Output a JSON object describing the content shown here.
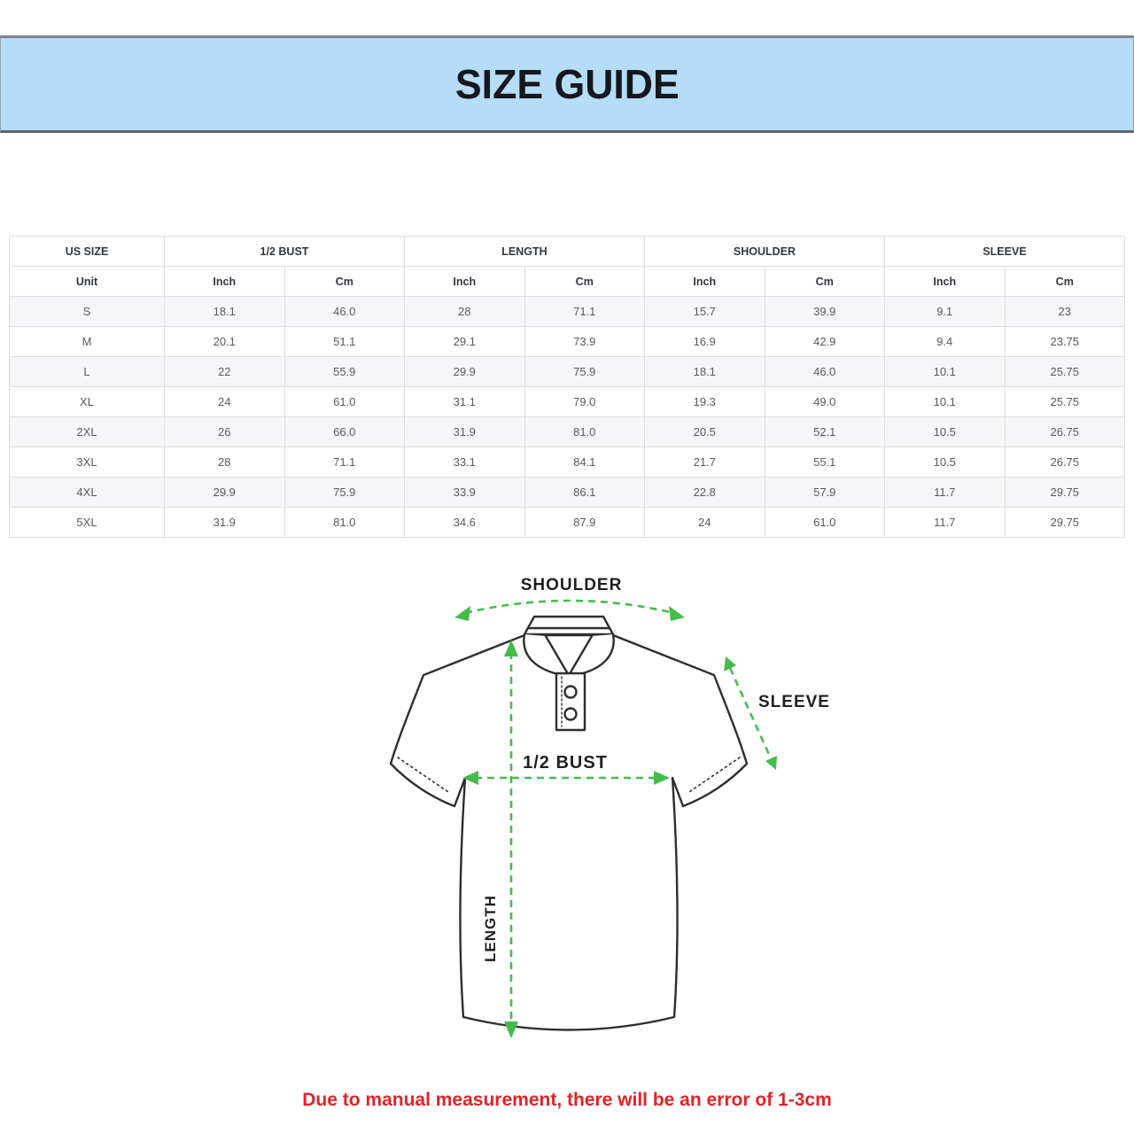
{
  "banner": {
    "title": "SIZE GUIDE"
  },
  "colors": {
    "banner_bg": "#b5ddf8",
    "accent_green": "#46bb4c",
    "footnote_red": "#e32227",
    "row_alt": "#f6f6f8",
    "table_border": "#dddde1"
  },
  "table": {
    "groups": [
      {
        "label": "US SIZE",
        "span": 1
      },
      {
        "label": "1/2 BUST",
        "span": 2
      },
      {
        "label": "LENGTH",
        "span": 2
      },
      {
        "label": "SHOULDER",
        "span": 2
      },
      {
        "label": "SLEEVE",
        "span": 2
      }
    ],
    "unit_row": [
      "Unit",
      "Inch",
      "Cm",
      "Inch",
      "Cm",
      "Inch",
      "Cm",
      "Inch",
      "Cm"
    ],
    "rows": [
      [
        "S",
        "18.1",
        "46.0",
        "28",
        "71.1",
        "15.7",
        "39.9",
        "9.1",
        "23"
      ],
      [
        "M",
        "20.1",
        "51.1",
        "29.1",
        "73.9",
        "16.9",
        "42.9",
        "9.4",
        "23.75"
      ],
      [
        "L",
        "22",
        "55.9",
        "29.9",
        "75.9",
        "18.1",
        "46.0",
        "10.1",
        "25.75"
      ],
      [
        "XL",
        "24",
        "61.0",
        "31.1",
        "79.0",
        "19.3",
        "49.0",
        "10.1",
        "25.75"
      ],
      [
        "2XL",
        "26",
        "66.0",
        "31.9",
        "81.0",
        "20.5",
        "52.1",
        "10.5",
        "26.75"
      ],
      [
        "3XL",
        "28",
        "71.1",
        "33.1",
        "84.1",
        "21.7",
        "55.1",
        "10.5",
        "26.75"
      ],
      [
        "4XL",
        "29.9",
        "75.9",
        "33.9",
        "86.1",
        "22.8",
        "57.9",
        "11.7",
        "29.75"
      ],
      [
        "5XL",
        "31.9",
        "81.0",
        "34.6",
        "87.9",
        "24",
        "61.0",
        "11.7",
        "29.75"
      ]
    ]
  },
  "diagram": {
    "labels": {
      "shoulder": "SHOULDER",
      "sleeve": "SLEEVE",
      "half_bust": "1/2  BUST",
      "length": "LENGTH"
    }
  },
  "footnote": {
    "text": "Due to manual measurement, there will be an error of 1-3cm"
  }
}
